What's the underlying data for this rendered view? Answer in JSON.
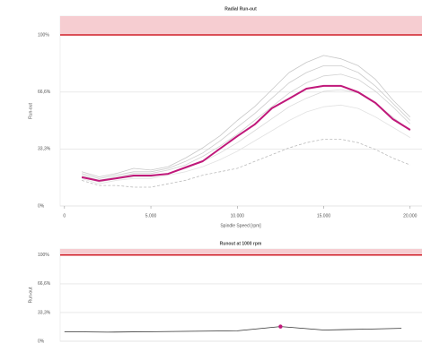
{
  "chart_data": [
    {
      "type": "line",
      "title": "Radial Run-out",
      "ylabel": "Run-out",
      "xlabel": "Spindle Speed [rpm]",
      "x": [
        1000,
        2000,
        3000,
        4000,
        5000,
        6000,
        7000,
        8000,
        9000,
        10000,
        11000,
        12000,
        13000,
        14000,
        15000,
        16000,
        17000,
        18000,
        19000,
        20000
      ],
      "series": [
        {
          "color": "#c8c8c8",
          "values": [
            20,
            17,
            19,
            22,
            21,
            23,
            28,
            34,
            41,
            50,
            58,
            68,
            78,
            84,
            88,
            86,
            82,
            74,
            62,
            52
          ]
        },
        {
          "color": "#cccccc",
          "values": [
            19,
            16,
            18,
            20,
            20,
            22,
            26,
            31,
            38,
            46,
            54,
            63,
            72,
            78,
            82,
            82,
            78,
            70,
            60,
            50
          ]
        },
        {
          "color": "#d2d2d2",
          "values": [
            18,
            15,
            17,
            19,
            19,
            21,
            24,
            29,
            35,
            42,
            50,
            58,
            66,
            72,
            76,
            77,
            74,
            67,
            58,
            48
          ]
        },
        {
          "color": "#dadada",
          "values": [
            17,
            14,
            16,
            17,
            17,
            19,
            22,
            26,
            31,
            37,
            44,
            51,
            58,
            63,
            67,
            68,
            66,
            60,
            52,
            44
          ]
        },
        {
          "color": "#e2e2e2",
          "values": [
            16,
            13,
            15,
            16,
            16,
            18,
            20,
            23,
            27,
            32,
            38,
            44,
            50,
            55,
            58,
            59,
            57,
            52,
            46,
            40
          ]
        },
        {
          "color": "#bbbbbb",
          "dashed": true,
          "values": [
            15,
            12,
            12,
            11,
            11,
            13,
            15,
            18,
            20,
            22,
            26,
            30,
            34,
            37,
            39,
            39,
            37,
            33,
            28,
            24
          ]
        },
        {
          "color": "#c0187a",
          "width": 2,
          "values": [
            16.8,
            14.7,
            16.2,
            17.8,
            17.8,
            18.8,
            22.5,
            26.2,
            33.5,
            40.8,
            47.6,
            57.1,
            62.8,
            68.6,
            70.2,
            70.2,
            66.5,
            60.2,
            50.8,
            44.5
          ]
        }
      ],
      "xlim": [
        -250,
        21000
      ],
      "ylim": [
        0,
        111
      ],
      "xticks": [
        0,
        {
          "value": 5000,
          "label": "5.000"
        },
        {
          "value": 10000,
          "label": "10.000"
        },
        {
          "value": 15000,
          "label": "15.000"
        },
        {
          "value": 20000,
          "label": "20.000"
        }
      ],
      "yticks": [
        {
          "value": 0,
          "label": "0%"
        },
        {
          "value": 33.3,
          "label": "33,3%"
        },
        {
          "value": 66.6,
          "label": "66,6%"
        },
        {
          "value": 100,
          "label": "100%"
        }
      ],
      "grid": true,
      "threshold": 100,
      "threshold_color": "#d0202a",
      "band_color": "#f6cdd1"
    },
    {
      "type": "line",
      "title": "Runout at 1000 rpm",
      "ylabel": "Run-out",
      "series": [
        {
          "color": "#333333",
          "x": [
            0,
            2500,
            5000,
            7500,
            10000,
            12500,
            15000,
            17500,
            19500
          ],
          "values": [
            11,
            10.5,
            11,
            11.5,
            12,
            17,
            13,
            14,
            15
          ]
        },
        {
          "color": "#c0187a",
          "marker": true,
          "x": [
            12500
          ],
          "values": [
            17
          ]
        }
      ],
      "xlim": [
        -250,
        21000
      ],
      "ylim": [
        0,
        107
      ],
      "yticks": [
        {
          "value": 0,
          "label": "0%"
        },
        {
          "value": 33.3,
          "label": "33,3%"
        },
        {
          "value": 66.6,
          "label": "66,6%"
        },
        {
          "value": 100,
          "label": "100%"
        }
      ],
      "grid": true,
      "threshold": 100,
      "threshold_color": "#d0202a",
      "band_color": "#f6cdd1"
    }
  ]
}
